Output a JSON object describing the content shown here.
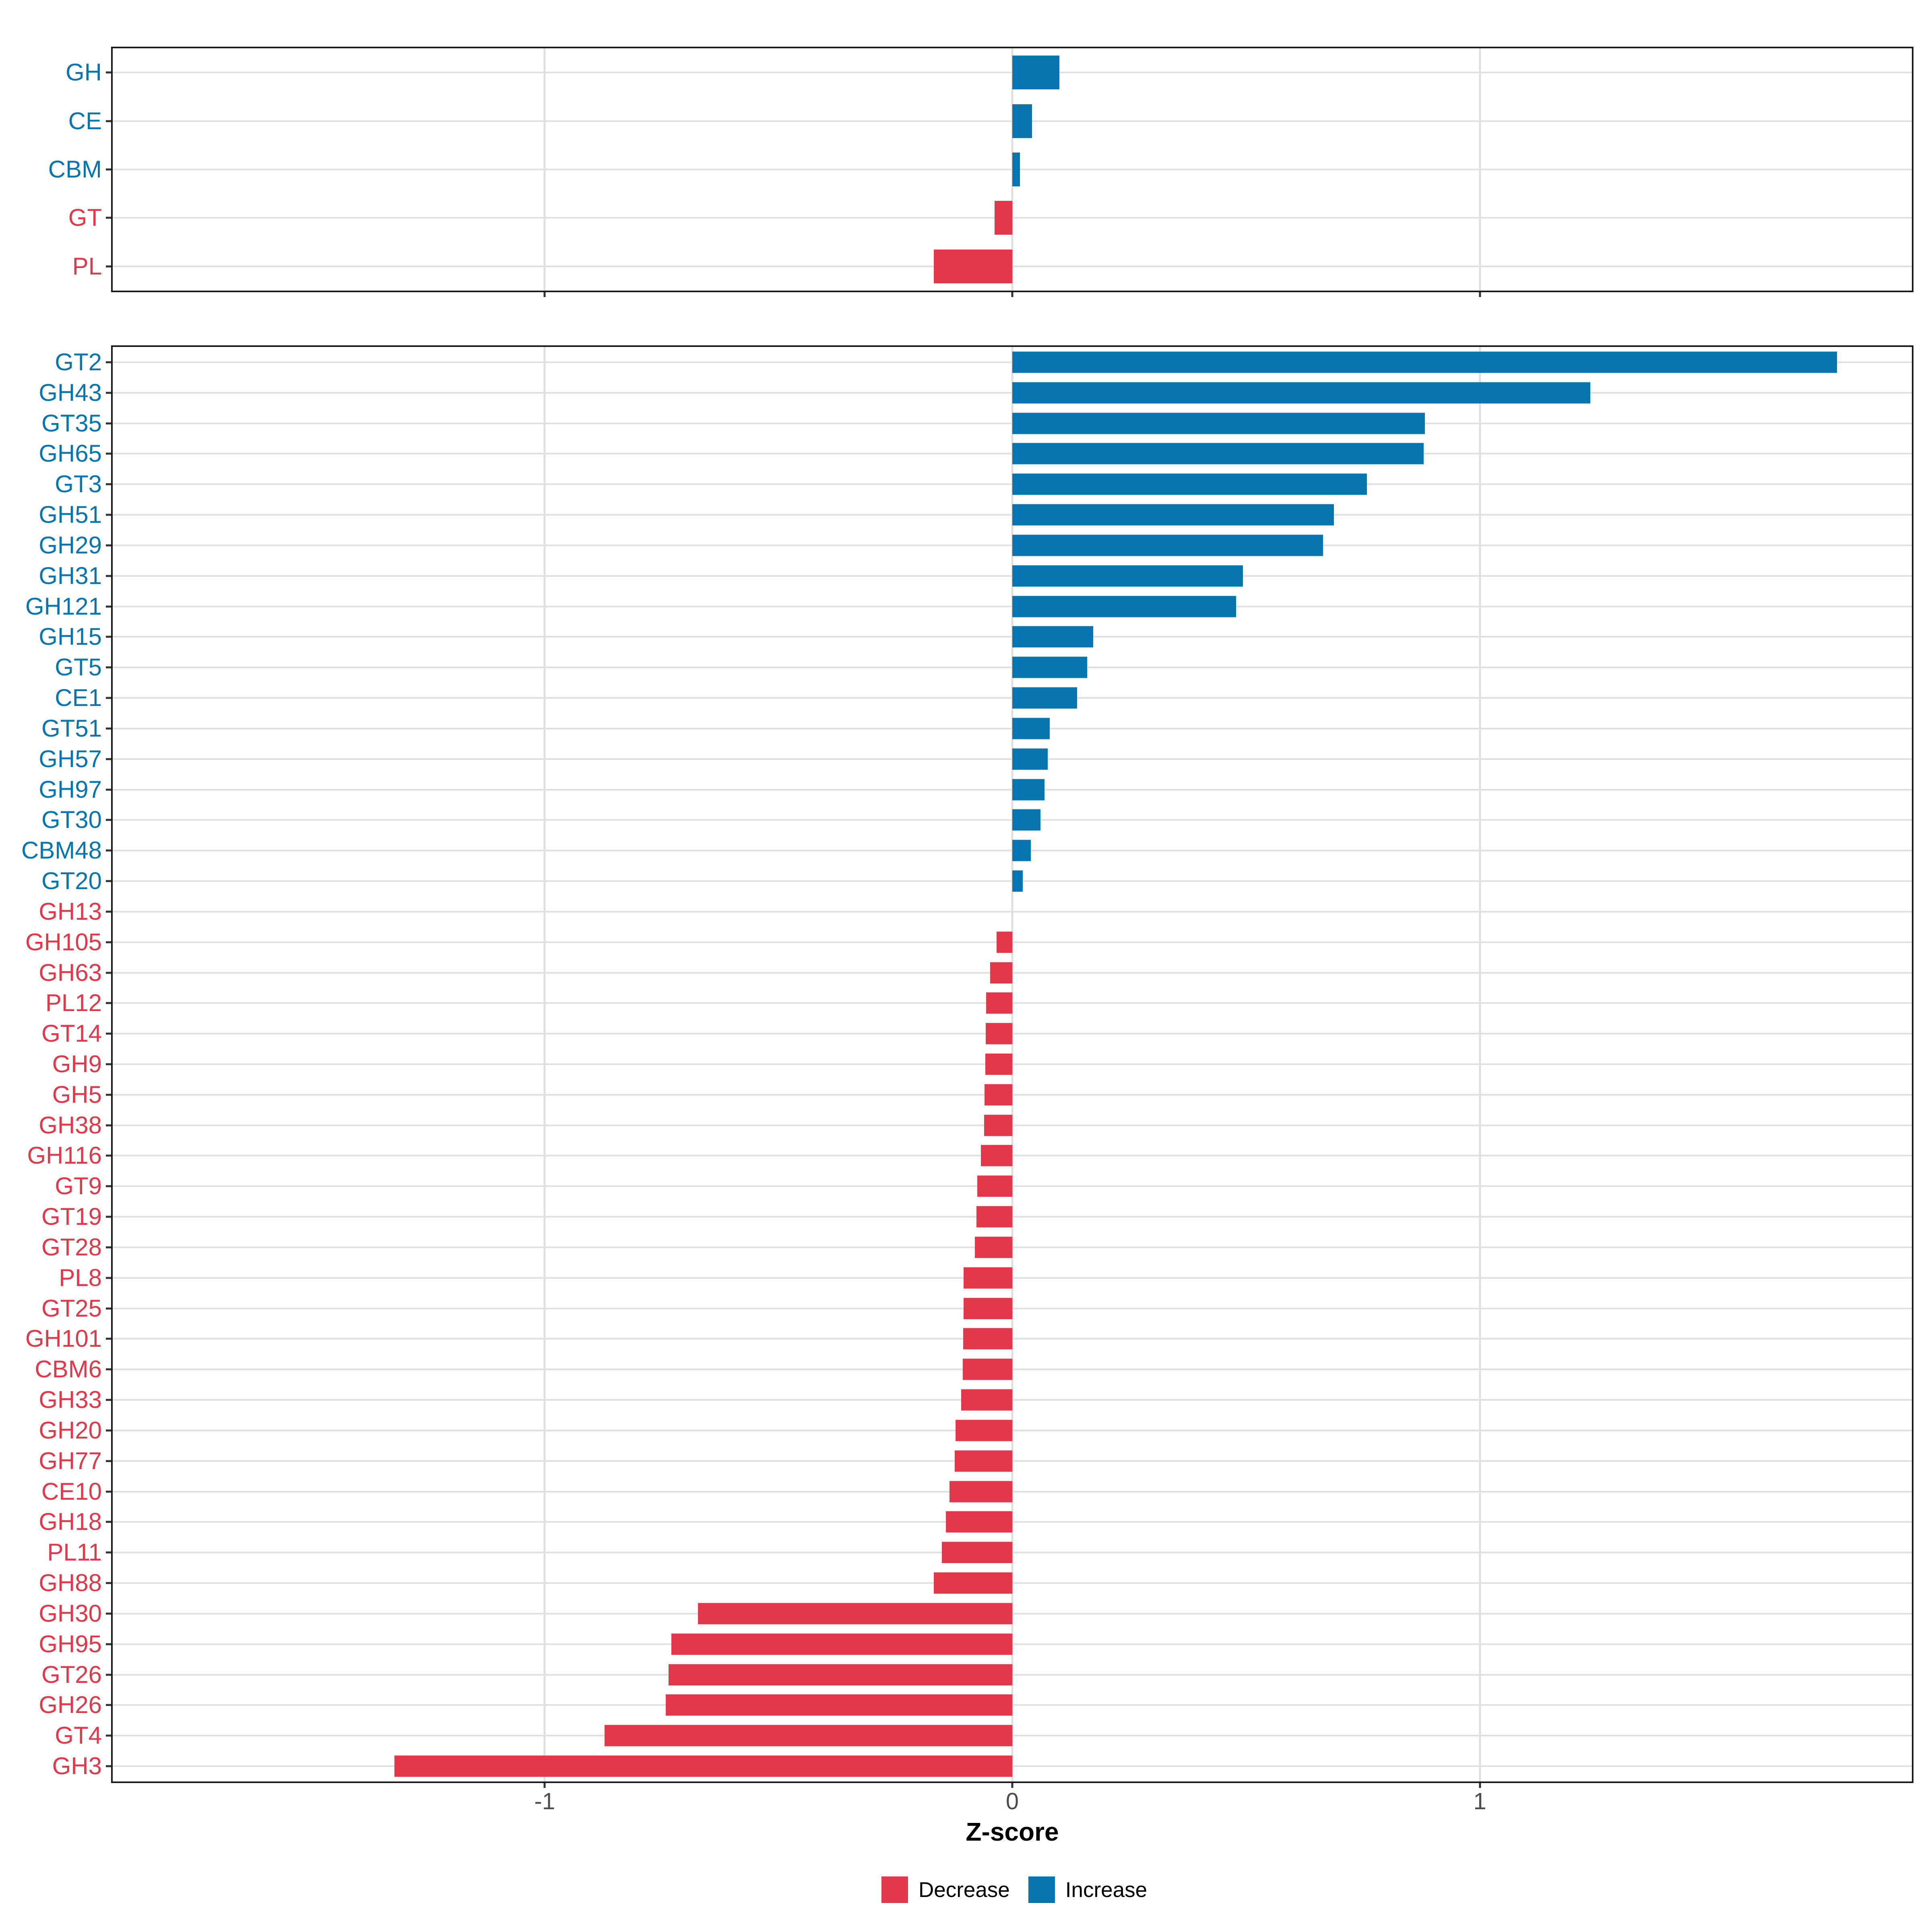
{
  "axis": {
    "title": "Z-score",
    "tick_values": [
      -1,
      0,
      1
    ],
    "tick_labels": [
      "-1",
      "0",
      "1"
    ],
    "domain": [
      -1.924,
      1.924
    ]
  },
  "colors": {
    "increase": "#0675b0",
    "decrease": "#e33849",
    "grid": "#e0e0e0",
    "border": "#1a1a1a",
    "tick": "#333333",
    "axis_text": "#4d4d4d"
  },
  "legend": {
    "items": [
      {
        "label": "Decrease",
        "direction": "decrease"
      },
      {
        "label": "Increase",
        "direction": "increase"
      }
    ]
  },
  "chart_data": [
    {
      "type": "bar",
      "orientation": "horizontal",
      "panel": "top",
      "title": "",
      "xlabel": "Z-score",
      "xlim": [
        -1.924,
        1.924
      ],
      "grid": "major-only",
      "categories": [
        "GH",
        "CE",
        "CBM",
        "GT",
        "PL"
      ],
      "values": [
        0.101,
        0.042,
        0.016,
        -0.038,
        -0.168
      ],
      "directions": [
        "increase",
        "increase",
        "increase",
        "decrease",
        "decrease"
      ]
    },
    {
      "type": "bar",
      "orientation": "horizontal",
      "panel": "bottom",
      "title": "",
      "xlabel": "Z-score",
      "xlim": [
        -1.924,
        1.924
      ],
      "grid": "major-only",
      "categories": [
        "GT2",
        "GH43",
        "GT35",
        "GH65",
        "GT3",
        "GH51",
        "GH29",
        "GH31",
        "GH121",
        "GH15",
        "GT5",
        "CE1",
        "GT51",
        "GH57",
        "GH97",
        "GT30",
        "CBM48",
        "GT20",
        "GH13",
        "GH105",
        "GH63",
        "PL12",
        "GT14",
        "GH9",
        "GH5",
        "GH38",
        "GH116",
        "GT9",
        "GT19",
        "GT28",
        "PL8",
        "GT25",
        "GH101",
        "CBM6",
        "GH33",
        "GH20",
        "GH77",
        "CE10",
        "GH18",
        "PL11",
        "GH88",
        "GH30",
        "GH95",
        "GT26",
        "GH26",
        "GT4",
        "GH3"
      ],
      "values": [
        1.764,
        1.236,
        0.882,
        0.88,
        0.758,
        0.688,
        0.665,
        0.493,
        0.479,
        0.173,
        0.16,
        0.139,
        0.08,
        0.076,
        0.069,
        0.06,
        0.04,
        0.022,
        0.0,
        -0.034,
        -0.047,
        -0.056,
        -0.057,
        -0.058,
        -0.059,
        -0.06,
        -0.067,
        -0.075,
        -0.077,
        -0.08,
        -0.104,
        -0.104,
        -0.105,
        -0.106,
        -0.109,
        -0.121,
        -0.123,
        -0.134,
        -0.142,
        -0.151,
        -0.168,
        -0.672,
        -0.729,
        -0.735,
        -0.741,
        -0.872,
        -1.321
      ],
      "directions": [
        "increase",
        "increase",
        "increase",
        "increase",
        "increase",
        "increase",
        "increase",
        "increase",
        "increase",
        "increase",
        "increase",
        "increase",
        "increase",
        "increase",
        "increase",
        "increase",
        "increase",
        "increase",
        "decrease",
        "decrease",
        "decrease",
        "decrease",
        "decrease",
        "decrease",
        "decrease",
        "decrease",
        "decrease",
        "decrease",
        "decrease",
        "decrease",
        "decrease",
        "decrease",
        "decrease",
        "decrease",
        "decrease",
        "decrease",
        "decrease",
        "decrease",
        "decrease",
        "decrease",
        "decrease",
        "decrease",
        "decrease",
        "decrease",
        "decrease",
        "decrease",
        "decrease"
      ]
    }
  ]
}
